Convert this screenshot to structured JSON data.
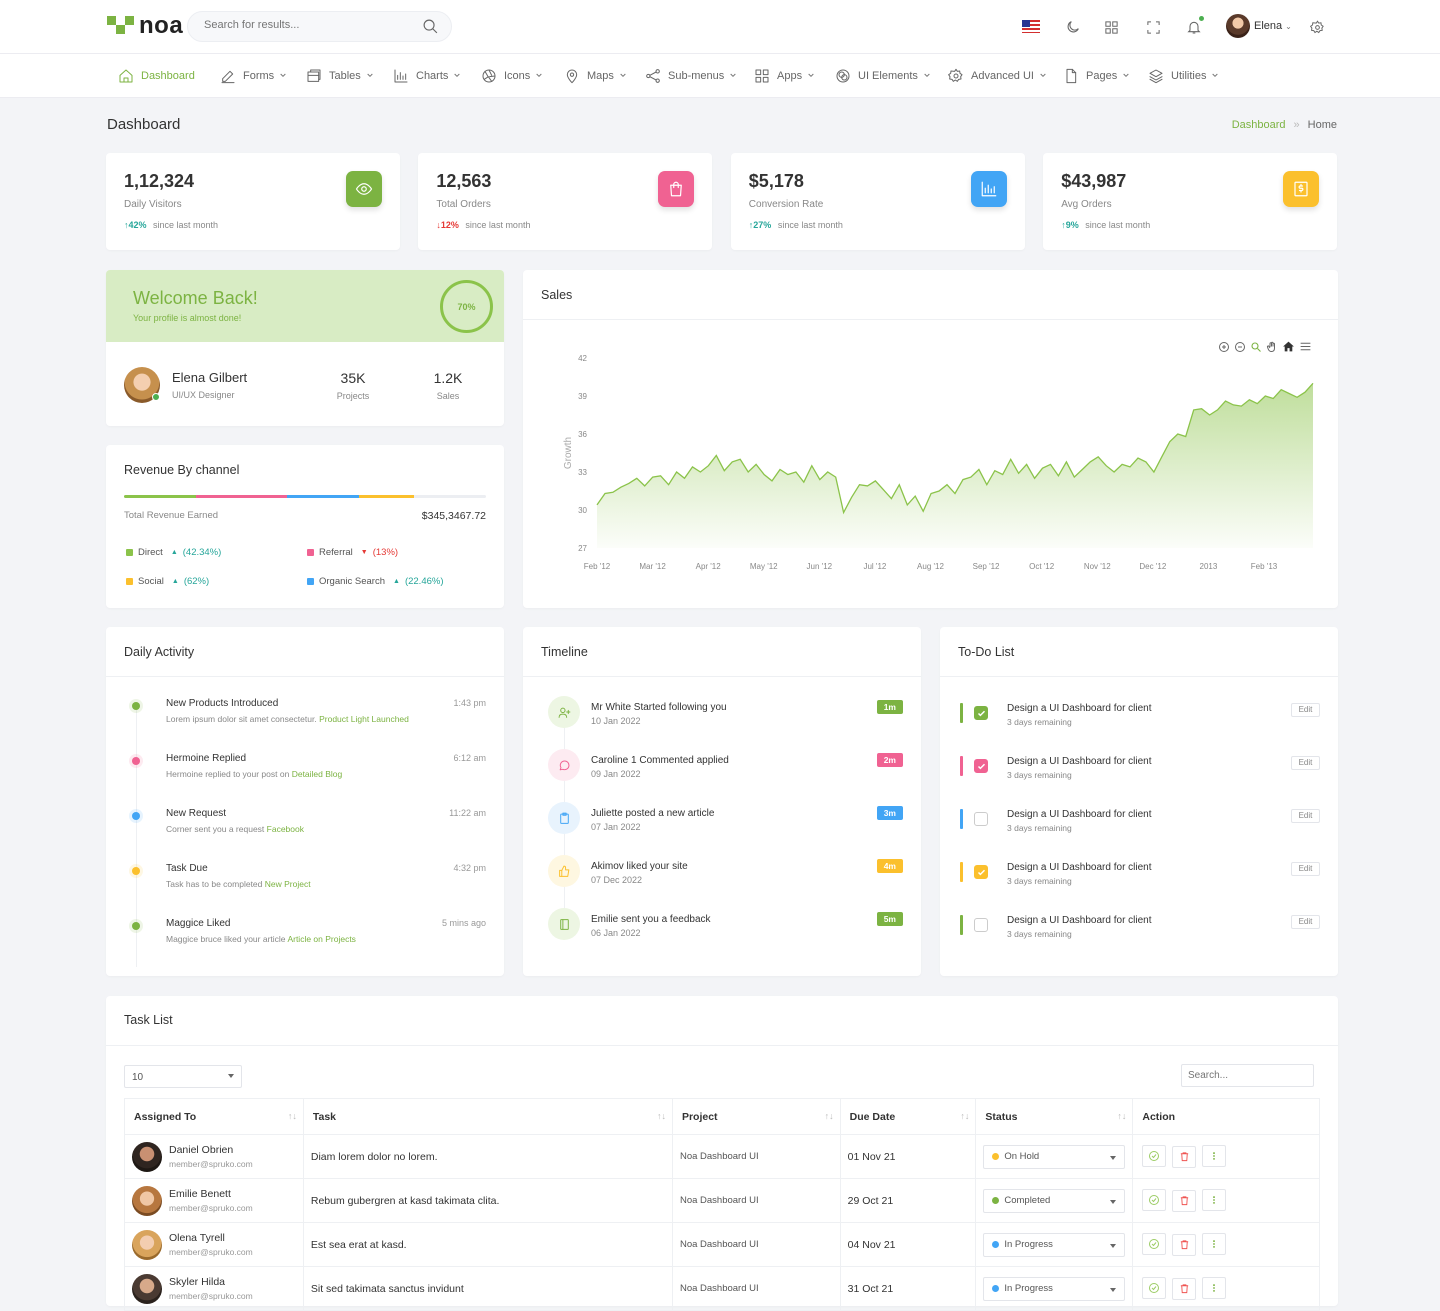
{
  "brand": {
    "name": "noa"
  },
  "search": {
    "placeholder": "Search for results..."
  },
  "header": {
    "user_name": "Elena"
  },
  "nav": [
    {
      "label": "Dashboard",
      "icon": "home-icon",
      "active": true
    },
    {
      "label": "Forms",
      "icon": "edit-icon"
    },
    {
      "label": "Tables",
      "icon": "table-icon"
    },
    {
      "label": "Charts",
      "icon": "bar-chart-icon"
    },
    {
      "label": "Icons",
      "icon": "aperture-icon"
    },
    {
      "label": "Maps",
      "icon": "map-pin-icon"
    },
    {
      "label": "Sub-menus",
      "icon": "share-icon"
    },
    {
      "label": "Apps",
      "icon": "grid-icon"
    },
    {
      "label": "UI Elements",
      "icon": "layers-circle-icon"
    },
    {
      "label": "Advanced UI",
      "icon": "settings-icon"
    },
    {
      "label": "Pages",
      "icon": "file-icon"
    },
    {
      "label": "Utilities",
      "icon": "layers-icon"
    }
  ],
  "page": {
    "title": "Dashboard",
    "breadcrumb": [
      "Dashboard",
      "»",
      "Home"
    ]
  },
  "stats": [
    {
      "value": "1,12,324",
      "label": "Daily Visitors",
      "change": "42%",
      "dir": "up",
      "suffix": "since last month",
      "color": "#7cb342",
      "icon": "eye-icon"
    },
    {
      "value": "12,563",
      "label": "Total Orders",
      "change": "12%",
      "dir": "down",
      "suffix": "since last month",
      "color": "#f06292",
      "icon": "shopping-bag-icon"
    },
    {
      "value": "$5,178",
      "label": "Conversion Rate",
      "change": "27%",
      "dir": "up",
      "suffix": "since last month",
      "color": "#42a5f5",
      "icon": "bar-chart-icon"
    },
    {
      "value": "$43,987",
      "label": "Avg Orders",
      "change": "9%",
      "dir": "up",
      "suffix": "since last month",
      "color": "#fbc02d",
      "icon": "dollar-icon"
    }
  ],
  "welcome": {
    "title": "Welcome Back!",
    "subtitle": "Your profile is almost done!",
    "progress": "70%",
    "progress_value": 0.7,
    "name": "Elena Gilbert",
    "role": "UI/UX Designer",
    "projects_value": "35K",
    "projects_label": "Projects",
    "sales_value": "1.2K",
    "sales_label": "Sales"
  },
  "revenue": {
    "title": "Revenue By channel",
    "total_label": "Total Revenue Earned",
    "total_value": "$345,3467.72",
    "channels": [
      {
        "name": "Direct",
        "change": "(42.34%)",
        "dir": "up",
        "color": "#8bc34a",
        "share": 0.2
      },
      {
        "name": "Referral",
        "change": "(13%)",
        "dir": "down",
        "color": "#f06292",
        "share": 0.25
      },
      {
        "name": "Social",
        "change": "(62%)",
        "dir": "up",
        "color": "#fbc02d",
        "share": 0.15
      },
      {
        "name": "Organic Search",
        "change": "(22.46%)",
        "dir": "up",
        "color": "#42a5f5",
        "share": 0.2
      }
    ]
  },
  "sales": {
    "title": "Sales"
  },
  "chart_data": {
    "type": "area",
    "title": "Sales",
    "ylabel": "Growth",
    "xlabel": "",
    "ylim": [
      27,
      42
    ],
    "yticks": [
      42,
      39,
      36,
      33,
      30,
      27
    ],
    "xticks": [
      "Feb '12",
      "Mar '12",
      "Apr '12",
      "May '12",
      "Jun '12",
      "Jul '12",
      "Aug '12",
      "Sep '12",
      "Oct '12",
      "Nov '12",
      "Dec '12",
      "2013",
      "Feb '13"
    ],
    "series": [
      {
        "values": [
          30.4,
          31.3,
          31.4,
          31.8,
          32.1,
          32.5,
          31.9,
          32.6,
          32.7,
          32.0,
          33.0,
          32.5,
          33.4,
          33.0,
          33.5,
          34.3,
          33.1,
          33.8,
          34.0,
          33.0,
          33.6,
          32.8,
          32.3,
          33.2,
          32.8,
          33.0,
          32.2,
          33.5,
          32.4,
          33.0,
          32.6,
          29.8,
          31.0,
          32.0,
          31.9,
          32.3,
          31.6,
          30.9,
          32.0,
          30.4,
          31.1,
          29.9,
          31.3,
          31.5,
          32.0,
          31.3,
          32.4,
          32.6,
          33.2,
          32.0,
          33.1,
          32.8,
          34.0,
          32.9,
          33.6,
          32.5,
          33.3,
          33.6,
          32.7,
          33.8,
          32.6,
          33.2,
          33.8,
          34.2,
          33.5,
          33.0,
          33.6,
          33.4,
          34.1,
          33.8,
          33.0,
          34.2,
          35.4,
          36.0,
          35.8,
          37.9,
          38.0,
          37.5,
          37.9,
          38.6,
          38.3,
          38.2,
          38.7,
          38.4,
          39.0,
          38.8,
          39.5,
          39.2,
          38.9,
          39.3,
          40.0
        ]
      }
    ],
    "grid": false,
    "color": "#8bc34a"
  },
  "activity": {
    "title": "Daily Activity",
    "items": [
      {
        "title": "New Products Introduced",
        "desc": "Lorem ipsum dolor sit amet consectetur.",
        "link": "Product Light Launched",
        "time": "1:43 pm",
        "color": "#7cb342"
      },
      {
        "title": "Hermoine Replied",
        "desc": "Hermoine replied to your post on",
        "link": "Detailed Blog",
        "time": "6:12 am",
        "color": "#f06292"
      },
      {
        "title": "New Request",
        "desc": "Corner sent you a request",
        "link": "Facebook",
        "time": "11:22 am",
        "color": "#42a5f5"
      },
      {
        "title": "Task Due",
        "desc": "Task has to be completed",
        "link": "New Project",
        "time": "4:32 pm",
        "color": "#fbc02d"
      },
      {
        "title": "Maggice Liked",
        "desc": "Maggice bruce liked your article",
        "link": "Article on Projects",
        "time": "5 mins ago",
        "color": "#7cb342"
      }
    ]
  },
  "timeline": {
    "title": "Timeline",
    "items": [
      {
        "title": "Mr White Started following you",
        "date": "10 Jan 2022",
        "badge": "1m",
        "color": "#7cb342",
        "bg": "#edf6e3",
        "icon": "user-plus-icon"
      },
      {
        "title": "Caroline 1 Commented applied",
        "date": "09 Jan 2022",
        "badge": "2m",
        "color": "#f06292",
        "bg": "#fdebf1",
        "icon": "message-icon"
      },
      {
        "title": "Juliette posted a new article",
        "date": "07 Jan 2022",
        "badge": "3m",
        "color": "#42a5f5",
        "bg": "#e8f3fd",
        "icon": "clipboard-icon"
      },
      {
        "title": "Akimov liked your site",
        "date": "07 Dec 2022",
        "badge": "4m",
        "color": "#fbc02d",
        "bg": "#fef7e1",
        "icon": "thumbs-up-icon"
      },
      {
        "title": "Emilie sent you a feedback",
        "date": "06 Jan 2022",
        "badge": "5m",
        "color": "#7cb342",
        "bg": "#edf6e3",
        "icon": "book-icon"
      }
    ]
  },
  "todo": {
    "title": "To-Do List",
    "edit_label": "Edit",
    "items": [
      {
        "title": "Design a UI Dashboard for client",
        "sub": "3 days remaining",
        "checked": true,
        "color": "#7cb342"
      },
      {
        "title": "Design a UI Dashboard for client",
        "sub": "3 days remaining",
        "checked": true,
        "color": "#f06292"
      },
      {
        "title": "Design a UI Dashboard for client",
        "sub": "3 days remaining",
        "checked": false,
        "color": "#42a5f5"
      },
      {
        "title": "Design a UI Dashboard for client",
        "sub": "3 days remaining",
        "checked": true,
        "color": "#fbc02d"
      },
      {
        "title": "Design a UI Dashboard for client",
        "sub": "3 days remaining",
        "checked": false,
        "color": "#7cb342"
      }
    ]
  },
  "tasks": {
    "title": "Task List",
    "page_size": "10",
    "search_placeholder": "Search...",
    "columns": [
      "Assigned To",
      "Task",
      "Project",
      "Due Date",
      "Status",
      "Action"
    ],
    "rows": [
      {
        "name": "Daniel Obrien",
        "email": "member@spruko.com",
        "task": "Diam lorem dolor no lorem.",
        "project": "Noa Dashboard UI",
        "due": "01 Nov 21",
        "status": "On Hold",
        "status_color": "#fbc02d"
      },
      {
        "name": "Emilie Benett",
        "email": "member@spruko.com",
        "task": "Rebum gubergren at kasd takimata clita.",
        "project": "Noa Dashboard UI",
        "due": "29 Oct 21",
        "status": "Completed",
        "status_color": "#7cb342"
      },
      {
        "name": "Olena Tyrell",
        "email": "member@spruko.com",
        "task": "Est sea erat at kasd.",
        "project": "Noa Dashboard UI",
        "due": "04 Nov 21",
        "status": "In Progress",
        "status_color": "#42a5f5"
      },
      {
        "name": "Skyler Hilda",
        "email": "member@spruko.com",
        "task": "Sit sed takimata sanctus invidunt",
        "project": "Noa Dashboard UI",
        "due": "31 Oct 21",
        "status": "In Progress",
        "status_color": "#42a5f5"
      }
    ]
  }
}
